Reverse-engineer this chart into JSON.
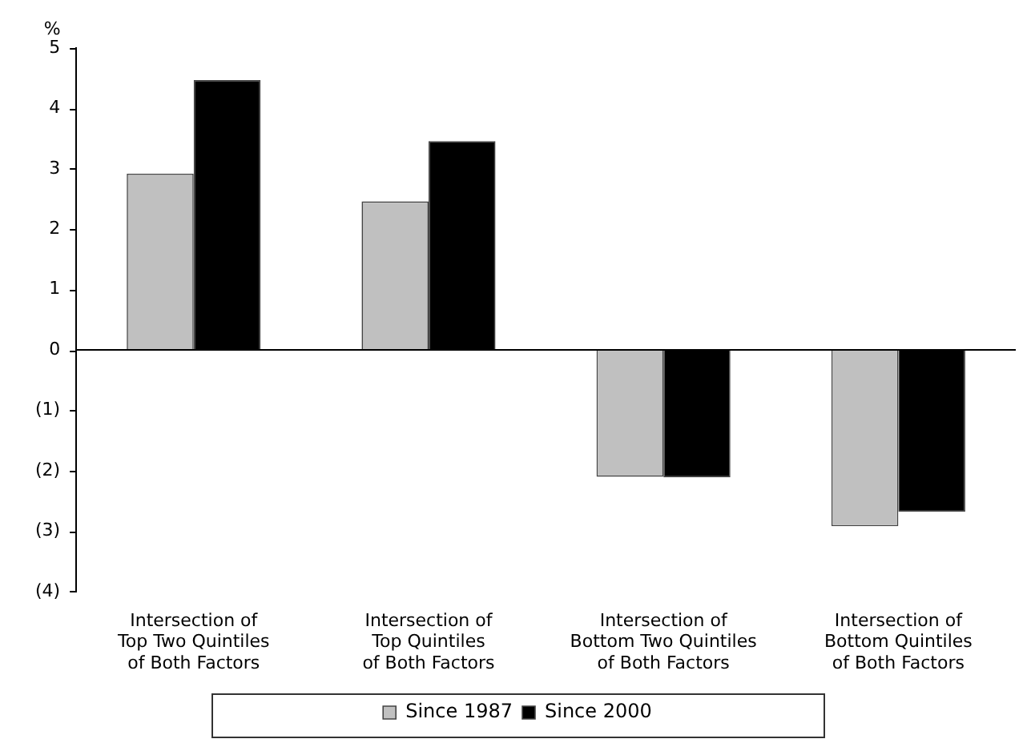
{
  "chart_data": {
    "type": "bar",
    "ylabel": "%",
    "categories": [
      "Intersection of\nTop Two Quintiles\nof Both Factors",
      "Intersection of\nTop Quintiles\nof Both Factors",
      "Intersection of\nBottom Two Quintiles\nof Both Factors",
      "Intersection of\nBottom Quintiles\nof Both Factors"
    ],
    "series": [
      {
        "name": "Since 1987",
        "color": "#c0c0c0",
        "values": [
          2.92,
          2.46,
          -2.1,
          -2.92
        ]
      },
      {
        "name": "Since 2000",
        "color": "#000000",
        "values": [
          4.47,
          3.46,
          -2.11,
          -2.68
        ]
      }
    ],
    "ylim": [
      -4,
      5
    ],
    "yticks": [
      {
        "value": -4,
        "label": "(4)"
      },
      {
        "value": -3,
        "label": "(3)"
      },
      {
        "value": -2,
        "label": "(2)"
      },
      {
        "value": -1,
        "label": "(1)"
      },
      0,
      1,
      2,
      3,
      4,
      5
    ],
    "legend": "bottom"
  }
}
